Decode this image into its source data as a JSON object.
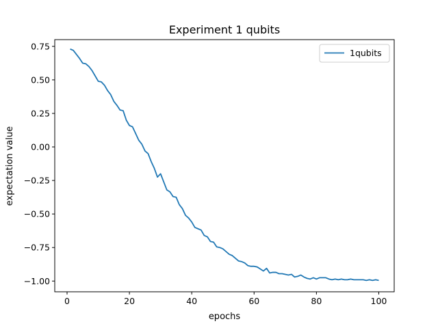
{
  "chart_data": {
    "type": "line",
    "title": "Experiment 1 qubits",
    "xlabel": "epochs",
    "ylabel": "expectation value",
    "xlim": [
      -3.95,
      104.95
    ],
    "ylim": [
      -1.08,
      0.8
    ],
    "xticks": [
      0,
      20,
      40,
      60,
      80,
      100
    ],
    "yticks": [
      0.75,
      0.5,
      0.25,
      0.0,
      -0.25,
      -0.5,
      -0.75,
      -1.0
    ],
    "ytick_labels": [
      "0.75",
      "0.50",
      "0.25",
      "0.00",
      "−0.25",
      "−0.50",
      "−0.75",
      "−1.00"
    ],
    "grid": false,
    "legend_position": "top-right",
    "series": [
      {
        "name": "1qubits",
        "color": "#1f77b4",
        "x": [
          1,
          2,
          3,
          4,
          5,
          6,
          7,
          8,
          9,
          10,
          11,
          12,
          13,
          14,
          15,
          16,
          17,
          18,
          19,
          20,
          21,
          22,
          23,
          24,
          25,
          26,
          27,
          28,
          29,
          30,
          31,
          32,
          33,
          34,
          35,
          36,
          37,
          38,
          39,
          40,
          41,
          42,
          43,
          44,
          45,
          46,
          47,
          48,
          49,
          50,
          51,
          52,
          53,
          54,
          55,
          56,
          57,
          58,
          59,
          60,
          61,
          62,
          63,
          64,
          65,
          66,
          67,
          68,
          69,
          70,
          71,
          72,
          73,
          74,
          75,
          76,
          77,
          78,
          79,
          80,
          81,
          82,
          83,
          84,
          85,
          86,
          87,
          88,
          89,
          90,
          91,
          92,
          93,
          94,
          95,
          96,
          97,
          98,
          99,
          100
        ],
        "values": [
          0.73,
          0.72,
          0.69,
          0.66,
          0.625,
          0.62,
          0.6,
          0.57,
          0.53,
          0.49,
          0.485,
          0.46,
          0.42,
          0.39,
          0.34,
          0.31,
          0.275,
          0.27,
          0.2,
          0.16,
          0.15,
          0.1,
          0.05,
          0.02,
          -0.03,
          -0.05,
          -0.11,
          -0.16,
          -0.225,
          -0.2,
          -0.26,
          -0.32,
          -0.335,
          -0.37,
          -0.375,
          -0.43,
          -0.46,
          -0.51,
          -0.53,
          -0.56,
          -0.6,
          -0.61,
          -0.62,
          -0.66,
          -0.67,
          -0.705,
          -0.71,
          -0.745,
          -0.75,
          -0.76,
          -0.78,
          -0.8,
          -0.81,
          -0.83,
          -0.85,
          -0.855,
          -0.865,
          -0.885,
          -0.89,
          -0.89,
          -0.895,
          -0.91,
          -0.925,
          -0.905,
          -0.94,
          -0.935,
          -0.935,
          -0.945,
          -0.945,
          -0.95,
          -0.955,
          -0.95,
          -0.97,
          -0.965,
          -0.955,
          -0.97,
          -0.98,
          -0.985,
          -0.975,
          -0.985,
          -0.975,
          -0.975,
          -0.975,
          -0.985,
          -0.99,
          -0.985,
          -0.99,
          -0.985,
          -0.99,
          -0.99,
          -0.985,
          -0.99,
          -0.99,
          -0.99,
          -0.99,
          -0.995,
          -0.99,
          -0.995,
          -0.99,
          -0.995
        ]
      }
    ]
  }
}
